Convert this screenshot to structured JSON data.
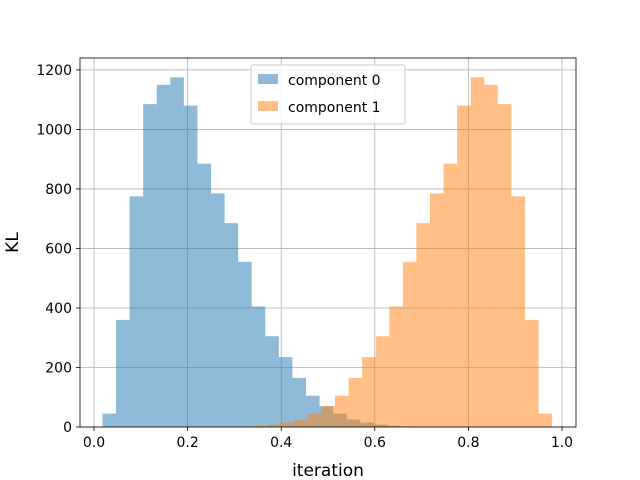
{
  "chart_data": {
    "type": "bar",
    "histogram": true,
    "title": "",
    "xlabel": "iteration",
    "ylabel": "KL",
    "xlim": [
      -0.03,
      1.03
    ],
    "ylim": [
      0,
      1240
    ],
    "xticks": [
      "0.0",
      "0.2",
      "0.4",
      "0.6",
      "0.8",
      "1.0"
    ],
    "xtick_values": [
      0,
      0.2,
      0.4,
      0.6,
      0.8,
      1.0
    ],
    "yticks": [
      "0",
      "200",
      "400",
      "600",
      "800",
      "1000",
      "1200"
    ],
    "ytick_values": [
      0,
      200,
      400,
      600,
      800,
      1000,
      1200
    ],
    "grid": true,
    "legend_position": "top-center",
    "series": [
      {
        "name": "component 0",
        "color": "#1f77b4",
        "alpha": 0.5,
        "bin_edges": [
          0.018,
          0.047,
          0.076,
          0.105,
          0.134,
          0.163,
          0.192,
          0.221,
          0.25,
          0.279,
          0.308,
          0.337,
          0.366,
          0.395,
          0.424,
          0.453,
          0.482,
          0.511,
          0.54,
          0.569,
          0.598,
          0.627,
          0.656,
          0.685
        ],
        "values": [
          45,
          360,
          775,
          1085,
          1150,
          1175,
          1080,
          885,
          785,
          685,
          555,
          405,
          305,
          235,
          165,
          105,
          70,
          45,
          25,
          15,
          8,
          4,
          2
        ]
      },
      {
        "name": "component 1",
        "color": "#ff7f0e",
        "alpha": 0.5,
        "bin_edges": [
          0.312,
          0.341,
          0.37,
          0.399,
          0.428,
          0.457,
          0.486,
          0.515,
          0.544,
          0.573,
          0.602,
          0.631,
          0.66,
          0.689,
          0.718,
          0.747,
          0.776,
          0.805,
          0.834,
          0.863,
          0.892,
          0.921,
          0.95,
          0.979
        ],
        "values": [
          2,
          4,
          8,
          15,
          25,
          45,
          70,
          105,
          165,
          235,
          305,
          405,
          555,
          685,
          785,
          885,
          1080,
          1175,
          1150,
          1085,
          775,
          360,
          45
        ]
      }
    ]
  }
}
